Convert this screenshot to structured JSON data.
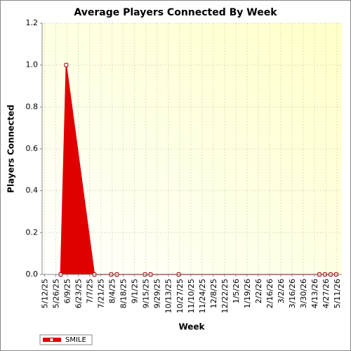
{
  "chart_data": {
    "type": "area",
    "title": "Average Players Connected By Week",
    "x_label": "Week",
    "y_label": "Players Connected",
    "x": [
      "6/1/25",
      "6/8/25",
      "7/13/25",
      "8/3/25",
      "8/10/25",
      "9/14/25",
      "9/21/25",
      "10/26/25",
      "4/19/26",
      "4/26/26",
      "5/3/26",
      "5/10/26"
    ],
    "series": [
      {
        "name": "SMILE",
        "color": "#e00000",
        "values": [
          0,
          1,
          0,
          0,
          0,
          0,
          0,
          0,
          0,
          0,
          0,
          0
        ]
      }
    ],
    "xlim": [
      "5/9/25",
      "5/17/26"
    ],
    "xticks": [
      "5/12/25",
      "5/26/25",
      "6/9/25",
      "6/23/25",
      "7/7/25",
      "7/21/25",
      "8/4/25",
      "8/18/25",
      "9/1/25",
      "9/15/25",
      "9/29/25",
      "10/13/25",
      "10/27/25",
      "11/10/25",
      "11/24/25",
      "12/8/25",
      "12/22/25",
      "1/5/26",
      "1/19/26",
      "2/2/26",
      "2/16/26",
      "3/2/26",
      "3/16/26",
      "3/30/26",
      "4/13/26",
      "4/27/26",
      "5/11/26"
    ],
    "ylim": [
      0,
      1.2
    ],
    "yticks": [
      {
        "value": 0,
        "label": "0.0"
      },
      0.2,
      0.4,
      0.6,
      0.8,
      {
        "value": 1,
        "label": "1.0"
      },
      1.2
    ],
    "grid": true,
    "legend": "bottom-left"
  }
}
